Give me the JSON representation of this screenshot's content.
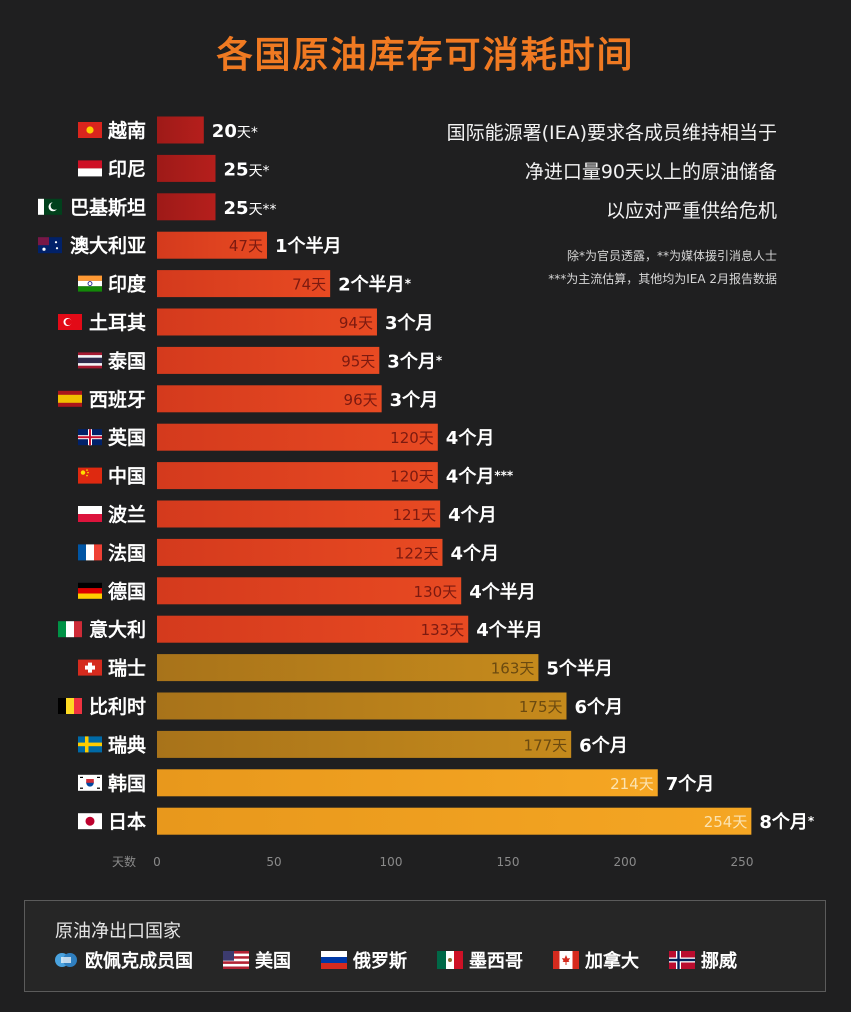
{
  "title": "各国原油库存可消耗时间",
  "note_main": [
    "国际能源署(IEA)要求各成员维持相当于",
    "净进口量90天以上的原油储备",
    "以应对严重供给危机"
  ],
  "note_sub": [
    "除*为官员透露，**为媒体援引消息人士",
    "***为主流估算，其他均为IEA 2月报告数据"
  ],
  "panel": {
    "title": "原油净出口国家",
    "items": [
      {
        "label": "欧佩克成员国",
        "icon": "opec-logo-icon"
      },
      {
        "label": "美国",
        "icon": "flag-us-icon"
      },
      {
        "label": "俄罗斯",
        "icon": "flag-russia-icon"
      },
      {
        "label": "墨西哥",
        "icon": "flag-mexico-icon"
      },
      {
        "label": "加拿大",
        "icon": "flag-canada-icon"
      },
      {
        "label": "挪威",
        "icon": "flag-norway-icon"
      }
    ]
  },
  "chart_data": {
    "type": "bar",
    "orientation": "horizontal",
    "xlabel": "天数",
    "xlim": [
      0,
      250
    ],
    "xticks": [
      0,
      50,
      100,
      150,
      200,
      250
    ],
    "colors": {
      "dark_red": "#b51f1c",
      "red_orange": "#e84a22",
      "dark_gold": "#c58a1c",
      "gold": "#f5a623"
    },
    "bars": [
      {
        "country": "越南",
        "value": 20,
        "value_label": "20天",
        "value_suffix": "*",
        "duration": "",
        "flag": "vietnam",
        "color": "dark_red"
      },
      {
        "country": "印尼",
        "value": 25,
        "value_label": "25天",
        "value_suffix": "*",
        "duration": "",
        "flag": "indonesia",
        "color": "dark_red"
      },
      {
        "country": "巴基斯坦",
        "value": 25,
        "value_label": "25天",
        "value_suffix": "**",
        "duration": "",
        "flag": "pakistan",
        "color": "dark_red"
      },
      {
        "country": "澳大利亚",
        "value": 47,
        "value_label": "47天",
        "value_suffix": "",
        "duration": "1个半月",
        "flag": "australia",
        "color": "red_orange"
      },
      {
        "country": "印度",
        "value": 74,
        "value_label": "74天",
        "value_suffix": "",
        "duration": "2个半月",
        "duration_suffix": "*",
        "flag": "india",
        "color": "red_orange"
      },
      {
        "country": "土耳其",
        "value": 94,
        "value_label": "94天",
        "value_suffix": "",
        "duration": "3个月",
        "flag": "turkey",
        "color": "red_orange"
      },
      {
        "country": "泰国",
        "value": 95,
        "value_label": "95天",
        "value_suffix": "",
        "duration": "3个月",
        "duration_suffix": "*",
        "flag": "thailand",
        "color": "red_orange"
      },
      {
        "country": "西班牙",
        "value": 96,
        "value_label": "96天",
        "value_suffix": "",
        "duration": "3个月",
        "flag": "spain",
        "color": "red_orange"
      },
      {
        "country": "英国",
        "value": 120,
        "value_label": "120天",
        "value_suffix": "",
        "duration": "4个月",
        "flag": "uk",
        "color": "red_orange"
      },
      {
        "country": "中国",
        "value": 120,
        "value_label": "120天",
        "value_suffix": "",
        "duration": "4个月",
        "duration_suffix": "***",
        "flag": "china",
        "color": "red_orange"
      },
      {
        "country": "波兰",
        "value": 121,
        "value_label": "121天",
        "value_suffix": "",
        "duration": "4个月",
        "flag": "poland",
        "color": "red_orange"
      },
      {
        "country": "法国",
        "value": 122,
        "value_label": "122天",
        "value_suffix": "",
        "duration": "4个月",
        "flag": "france",
        "color": "red_orange"
      },
      {
        "country": "德国",
        "value": 130,
        "value_label": "130天",
        "value_suffix": "",
        "duration": "4个半月",
        "flag": "germany",
        "color": "red_orange"
      },
      {
        "country": "意大利",
        "value": 133,
        "value_label": "133天",
        "value_suffix": "",
        "duration": "4个半月",
        "flag": "italy",
        "color": "red_orange"
      },
      {
        "country": "瑞士",
        "value": 163,
        "value_label": "163天",
        "value_suffix": "",
        "duration": "5个半月",
        "flag": "switzerland",
        "color": "dark_gold"
      },
      {
        "country": "比利时",
        "value": 175,
        "value_label": "175天",
        "value_suffix": "",
        "duration": "6个月",
        "flag": "belgium",
        "color": "dark_gold"
      },
      {
        "country": "瑞典",
        "value": 177,
        "value_label": "177天",
        "value_suffix": "",
        "duration": "6个月",
        "flag": "sweden",
        "color": "dark_gold"
      },
      {
        "country": "韩国",
        "value": 214,
        "value_label": "214天",
        "value_suffix": "",
        "duration": "7个月",
        "flag": "korea",
        "color": "gold"
      },
      {
        "country": "日本",
        "value": 254,
        "value_label": "254天",
        "value_suffix": "",
        "duration": "8个月",
        "duration_suffix": "*",
        "flag": "japan",
        "color": "gold"
      }
    ]
  }
}
